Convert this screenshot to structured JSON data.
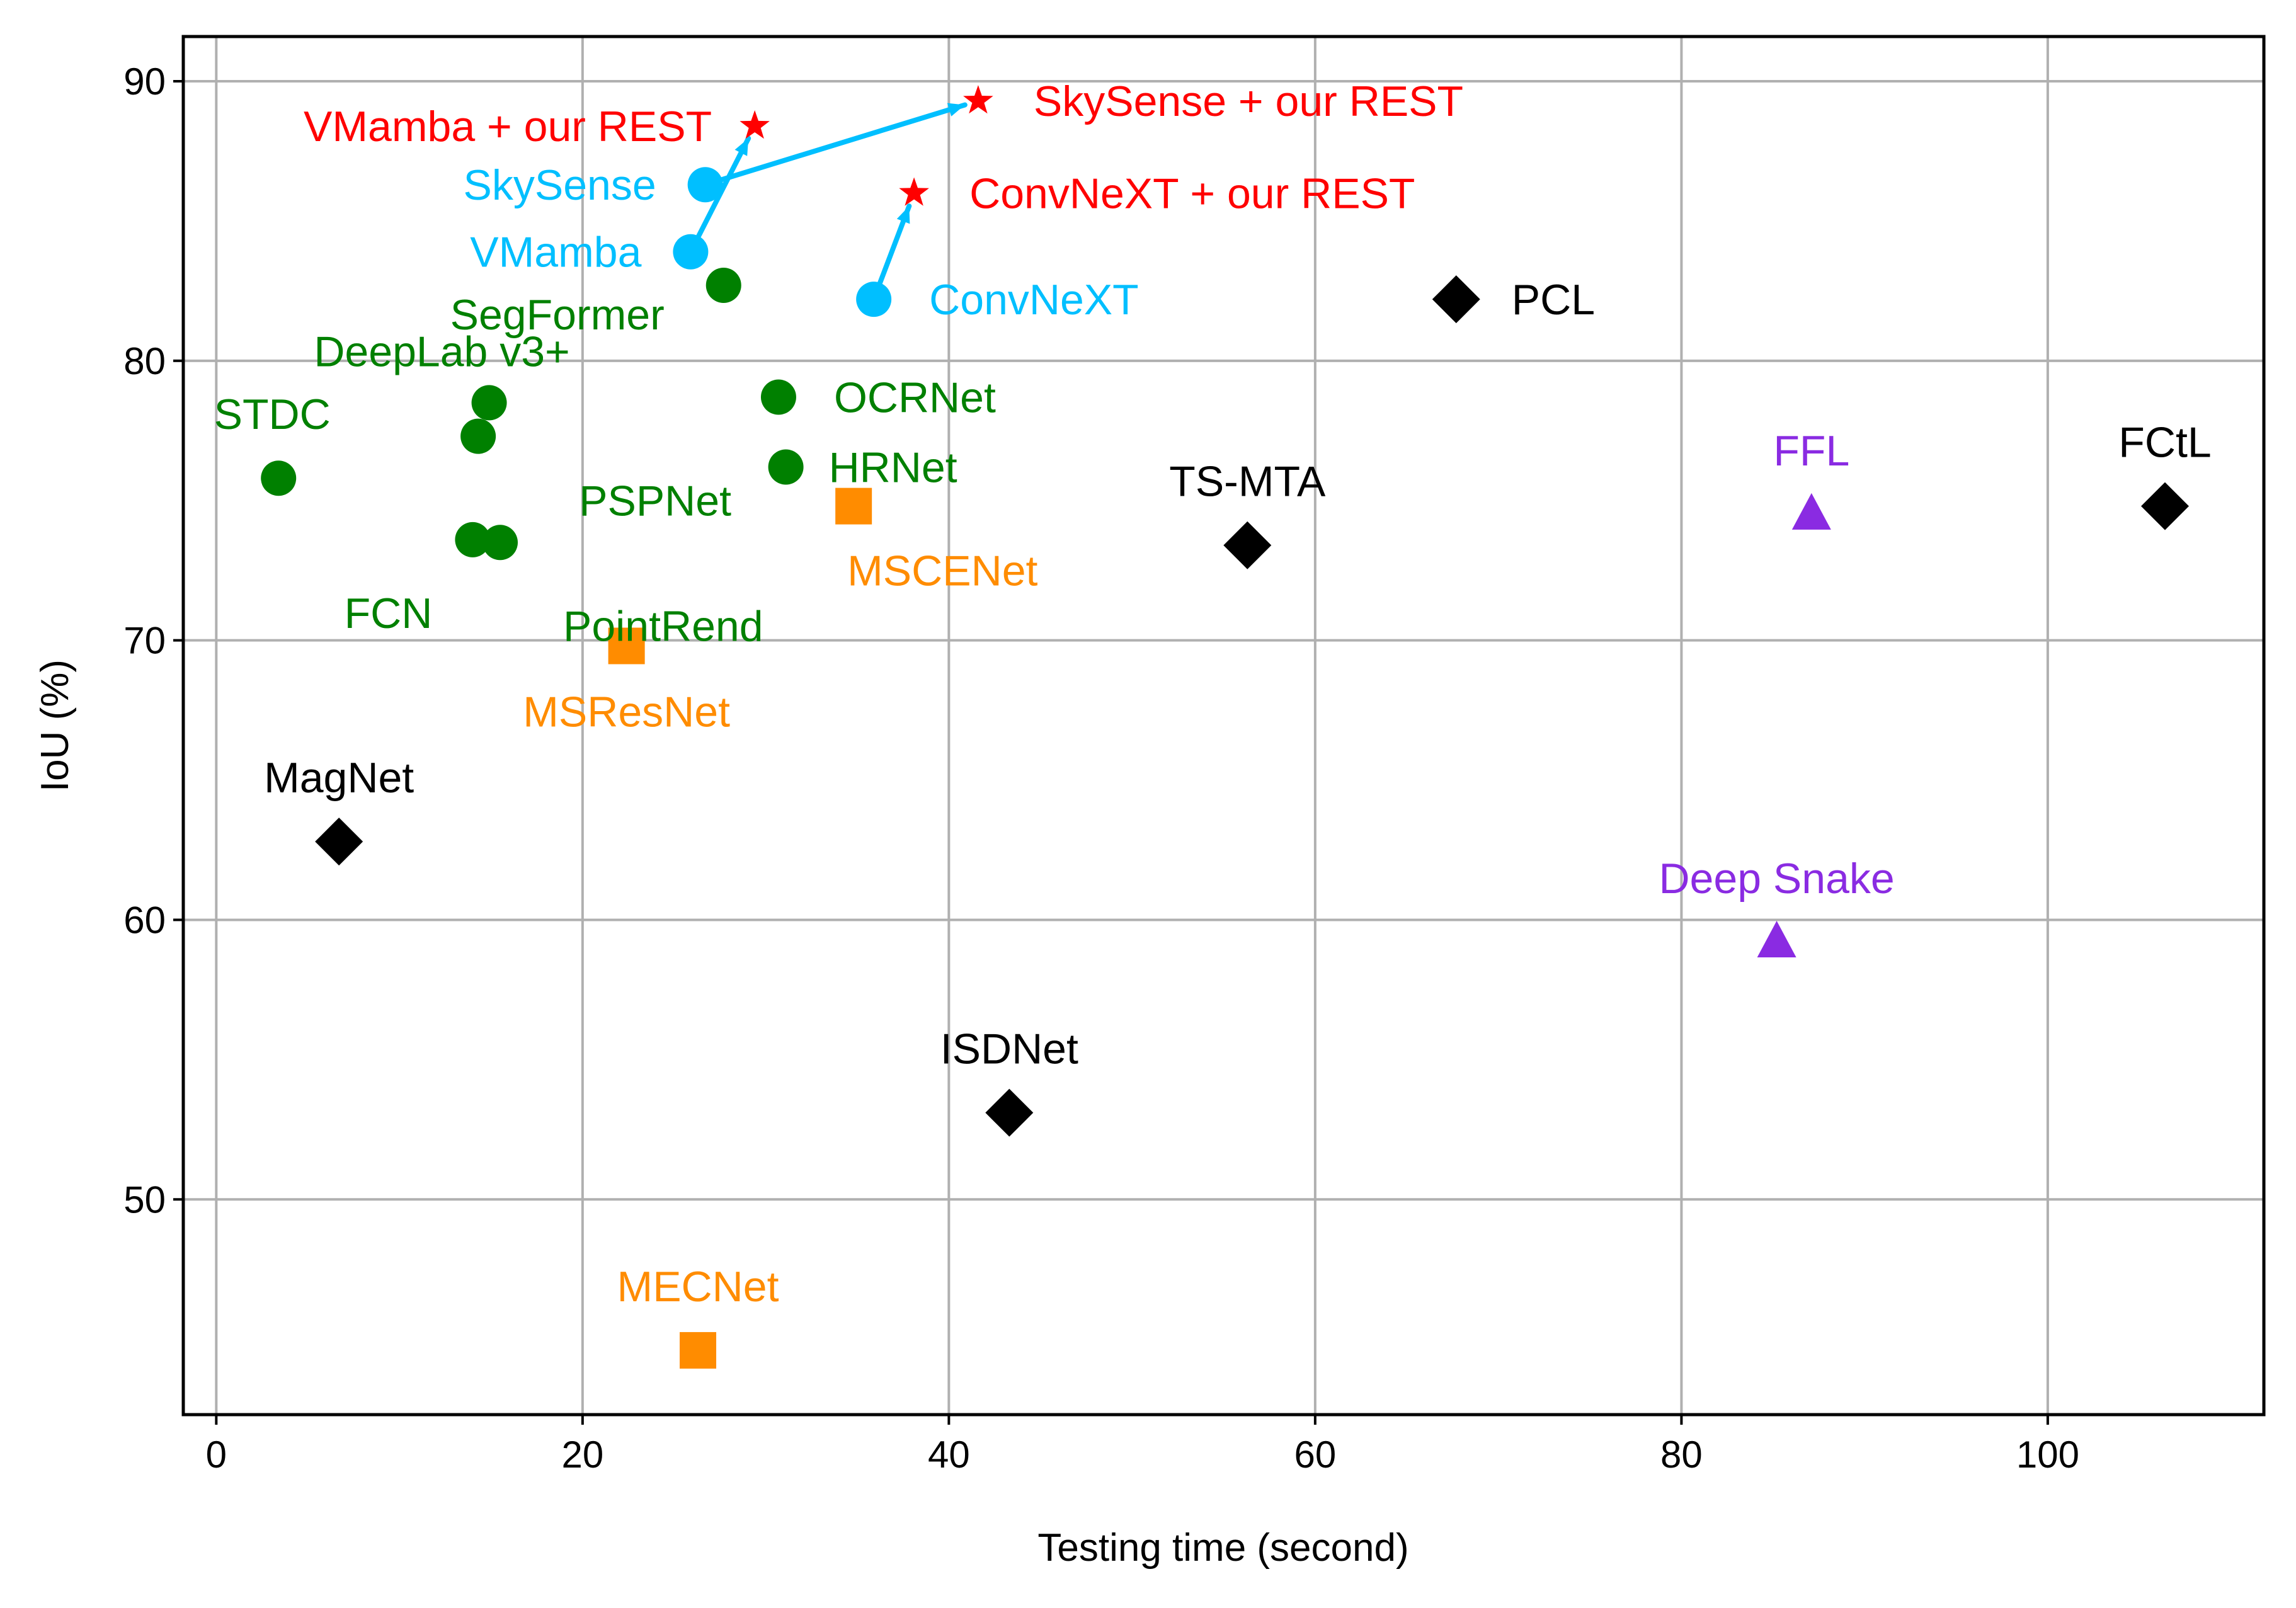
{
  "chart_data": {
    "type": "scatter",
    "xlabel": "Testing time (second)",
    "ylabel": "IoU (%)",
    "xlim": [
      -1.8,
      111.8
    ],
    "ylim": [
      42.3,
      91.6
    ],
    "xticks": [
      0,
      20,
      40,
      60,
      80,
      100
    ],
    "yticks": [
      50,
      60,
      70,
      80,
      90
    ],
    "grid": true,
    "colors": {
      "green": "#008000",
      "cyan": "#00bfff",
      "red": "#ff0000",
      "orange": "#ff8c00",
      "black": "#000000",
      "purple": "#8a2be2"
    },
    "points": [
      {
        "name": "STDC",
        "x": 3.4,
        "y": 75.8,
        "marker": "circle",
        "color": "#008000",
        "label_pos": "above-left"
      },
      {
        "name": "DeepLab v3+",
        "x": 14.9,
        "y": 78.5,
        "marker": "circle",
        "color": "#008000",
        "label_pos": "above"
      },
      {
        "name": "PSPNet",
        "x": 14.3,
        "y": 77.3,
        "marker": "circle",
        "color": "#008000",
        "label_pos": "below-right"
      },
      {
        "name": "FCN",
        "x": 14.0,
        "y": 73.6,
        "marker": "circle",
        "color": "#008000",
        "label_pos": "below-left"
      },
      {
        "name": "PointRend",
        "x": 15.5,
        "y": 73.5,
        "marker": "circle",
        "color": "#008000",
        "label_pos": "below-right"
      },
      {
        "name": "SegFormer",
        "x": 27.7,
        "y": 82.7,
        "marker": "circle",
        "color": "#008000",
        "label_pos": "below-left"
      },
      {
        "name": "OCRNet",
        "x": 30.7,
        "y": 78.7,
        "marker": "circle",
        "color": "#008000",
        "label_pos": "right"
      },
      {
        "name": "HRNet",
        "x": 31.1,
        "y": 76.2,
        "marker": "circle",
        "color": "#008000",
        "label_pos": "right"
      },
      {
        "name": "SkySense",
        "x": 26.7,
        "y": 86.3,
        "marker": "circle",
        "color": "#00bfff",
        "label_pos": "left"
      },
      {
        "name": "VMamba",
        "x": 25.9,
        "y": 83.9,
        "marker": "circle",
        "color": "#00bfff",
        "label_pos": "left"
      },
      {
        "name": "ConvNeXT",
        "x": 35.9,
        "y": 82.2,
        "marker": "circle",
        "color": "#00bfff",
        "label_pos": "right"
      },
      {
        "name": "VMamba + our REST",
        "x": 29.4,
        "y": 88.4,
        "marker": "star",
        "color": "#ff0000",
        "label_pos": "left"
      },
      {
        "name": "SkySense + our REST",
        "x": 41.6,
        "y": 89.3,
        "marker": "star",
        "color": "#ff0000",
        "label_pos": "right"
      },
      {
        "name": "ConvNeXT + our REST",
        "x": 38.1,
        "y": 86.0,
        "marker": "star",
        "color": "#ff0000",
        "label_pos": "right"
      },
      {
        "name": "MSCENet",
        "x": 34.8,
        "y": 74.8,
        "marker": "square",
        "color": "#ff8c00",
        "label_pos": "below-right"
      },
      {
        "name": "MSResNet",
        "x": 22.4,
        "y": 69.8,
        "marker": "square",
        "color": "#ff8c00",
        "label_pos": "below"
      },
      {
        "name": "MECNet",
        "x": 26.3,
        "y": 44.6,
        "marker": "square",
        "color": "#ff8c00",
        "label_pos": "above"
      },
      {
        "name": "PCL",
        "x": 67.7,
        "y": 82.2,
        "marker": "diamond",
        "color": "#000000",
        "label_pos": "right"
      },
      {
        "name": "TS-MTA",
        "x": 56.3,
        "y": 73.4,
        "marker": "diamond",
        "color": "#000000",
        "label_pos": "above"
      },
      {
        "name": "FCtL",
        "x": 106.4,
        "y": 74.8,
        "marker": "diamond",
        "color": "#000000",
        "label_pos": "above"
      },
      {
        "name": "MagNet",
        "x": 6.7,
        "y": 62.8,
        "marker": "diamond",
        "color": "#000000",
        "label_pos": "above"
      },
      {
        "name": "ISDNet",
        "x": 43.3,
        "y": 53.1,
        "marker": "diamond",
        "color": "#000000",
        "label_pos": "above"
      },
      {
        "name": "FFL",
        "x": 87.1,
        "y": 74.5,
        "marker": "triangle",
        "color": "#8a2be2",
        "label_pos": "above"
      },
      {
        "name": "Deep Snake",
        "x": 85.2,
        "y": 59.2,
        "marker": "triangle",
        "color": "#8a2be2",
        "label_pos": "above"
      }
    ],
    "arrows": [
      {
        "from": "VMamba",
        "to": "VMamba + our REST",
        "color": "#00bfff"
      },
      {
        "from": "SkySense",
        "to": "SkySense + our REST",
        "color": "#00bfff"
      },
      {
        "from": "ConvNeXT",
        "to": "ConvNeXT + our REST",
        "color": "#00bfff"
      }
    ]
  }
}
